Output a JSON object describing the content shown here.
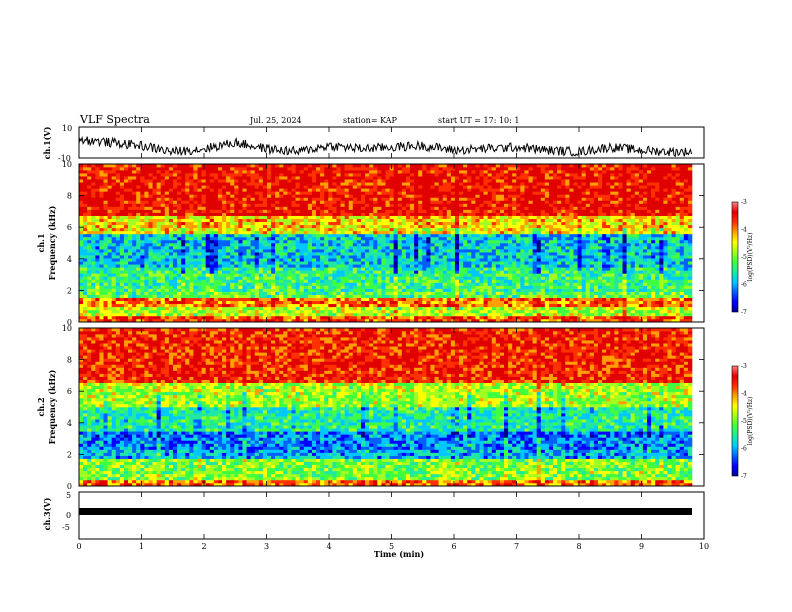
{
  "header": {
    "title": "VLF Spectra",
    "date": "Jul. 25, 2024",
    "station": "station= KAP",
    "start": "start  UT =   17: 10: 1"
  },
  "colors": {
    "colormap": [
      "#00008f",
      "#0000ff",
      "#0060ff",
      "#00c8ff",
      "#20e8a0",
      "#40ff40",
      "#a0ff20",
      "#ffff00",
      "#ffa000",
      "#ff3000",
      "#e00000",
      "#ff8080",
      "#ffffff"
    ],
    "waveform": "#000000"
  },
  "chart_data": [
    {
      "type": "line",
      "panel": "ch1-waveform",
      "ylabel": "ch.1(V)",
      "ylim": [
        -10,
        10
      ],
      "yticks": [
        "10",
        "-10"
      ],
      "xlim": [
        0,
        10
      ],
      "description_values": "noisy signal mostly between -8 and 4 V",
      "x": [
        0,
        0.5,
        1,
        1.5,
        2,
        2.5,
        3,
        3.5,
        4,
        4.5,
        5,
        5.5,
        6,
        6.5,
        7,
        7.5,
        8,
        8.5,
        9,
        9.5,
        9.8
      ],
      "y": [
        2,
        0,
        -2,
        -6,
        -4,
        0,
        -4,
        -6,
        -2,
        -4,
        -3,
        -2,
        -5,
        -4,
        -3,
        -5,
        -6,
        -3,
        -5,
        -6,
        -6
      ]
    },
    {
      "type": "heatmap",
      "panel": "ch1-spectrogram",
      "ylabel": "ch.1\nFrequency (kHz)",
      "ylim": [
        0,
        10
      ],
      "yticks": [
        "0",
        "2",
        "4",
        "6",
        "8",
        "10"
      ],
      "xlim": [
        0,
        9.83
      ],
      "colorbar": {
        "label": "log(PSD)(V²/Hz)",
        "range": [
          -7,
          -3
        ],
        "ticks": [
          "-3",
          "-4",
          "-5",
          "-6",
          "-7"
        ]
      },
      "bands_kHz_logpsd": [
        [
          0,
          0.4,
          -3.6
        ],
        [
          0.4,
          1.0,
          -4.6
        ],
        [
          1.0,
          1.5,
          -3.8
        ],
        [
          1.5,
          2.0,
          -5.0
        ],
        [
          2.0,
          3.5,
          -5.2
        ],
        [
          3.5,
          5.5,
          -5.6
        ],
        [
          5.5,
          6.8,
          -4.2
        ],
        [
          6.8,
          10,
          -3.3
        ]
      ]
    },
    {
      "type": "heatmap",
      "panel": "ch2-spectrogram",
      "ylabel": "ch.2\nFrequency (kHz)",
      "ylim": [
        0,
        10
      ],
      "yticks": [
        "0",
        "2",
        "4",
        "6",
        "8",
        "10"
      ],
      "xlim": [
        0,
        9.83
      ],
      "colorbar": {
        "label": "log(PSD)(V²/Hz)",
        "range": [
          -7,
          -3
        ],
        "ticks": [
          "-3",
          "-4",
          "-5",
          "-6",
          "-7"
        ]
      },
      "bands_kHz_logpsd": [
        [
          0,
          0.4,
          -3.8
        ],
        [
          0.4,
          1.8,
          -4.8
        ],
        [
          1.8,
          2.4,
          -5.8
        ],
        [
          2.4,
          3.5,
          -6.0
        ],
        [
          3.5,
          5.0,
          -5.3
        ],
        [
          5.0,
          6.5,
          -4.6
        ],
        [
          6.5,
          10,
          -3.4
        ]
      ]
    },
    {
      "type": "line",
      "panel": "ch3-waveform",
      "ylabel": "ch.3(V)",
      "ylim": [
        -5,
        5
      ],
      "yticks": [
        "5",
        "0",
        "-5"
      ],
      "xlabel": "Time  (min)",
      "xlim": [
        0,
        10
      ],
      "xticks": [
        "0",
        "1",
        "2",
        "3",
        "4",
        "5",
        "6",
        "7",
        "8",
        "9",
        "10"
      ],
      "x": [
        0,
        9.83
      ],
      "y": [
        0,
        0
      ]
    }
  ]
}
